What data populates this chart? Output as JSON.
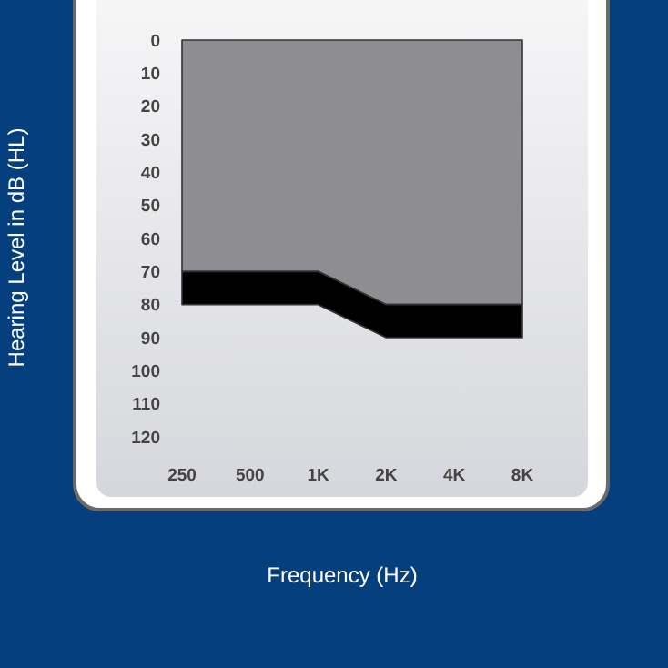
{
  "chart_data": {
    "type": "area",
    "stacked": true,
    "xlabel": "Frequency (Hz)",
    "ylabel": "Hearing Level in dB (HL)",
    "categories": [
      "250",
      "500",
      "1K",
      "2K",
      "4K",
      "8K"
    ],
    "series": [
      {
        "color": "#8e8d92",
        "values": [
          70,
          70,
          70,
          80,
          80,
          80
        ]
      },
      {
        "color": "#000000",
        "values": [
          10,
          10,
          10,
          10,
          10,
          10
        ]
      }
    ],
    "ylim": [
      120,
      0
    ],
    "yticks": [
      0,
      10,
      20,
      30,
      40,
      50,
      60,
      70,
      80,
      90,
      100,
      110,
      120
    ],
    "grid": false
  }
}
